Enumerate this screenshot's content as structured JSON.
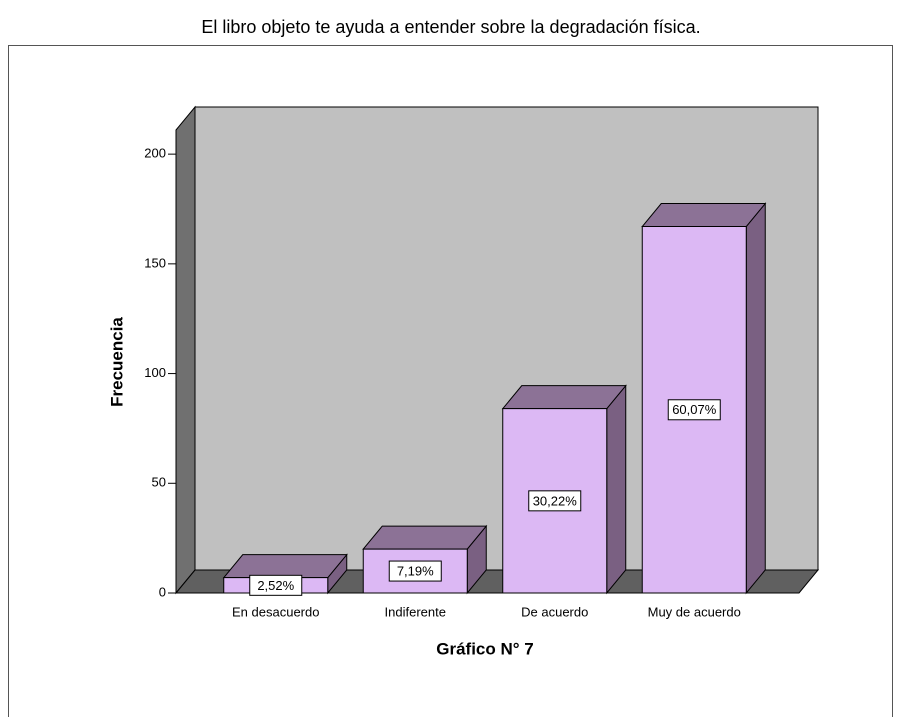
{
  "chart_data": {
    "type": "bar3d",
    "title": "El libro objeto te ayuda a entender sobre la degradación física.",
    "x_label": "Gráfico N° 7",
    "y_label": "Frecuencia",
    "categories": [
      "En desacuerdo",
      "Indiferente",
      "De acuerdo",
      "Muy de acuerdo"
    ],
    "values": [
      7,
      20,
      84,
      167
    ],
    "value_labels": [
      "2,52%",
      "7,19%",
      "30,22%",
      "60,07%"
    ],
    "color": "#dcb8f4",
    "ylim": [
      0,
      211
    ],
    "yticks": [
      0,
      50,
      100,
      150,
      200
    ]
  }
}
